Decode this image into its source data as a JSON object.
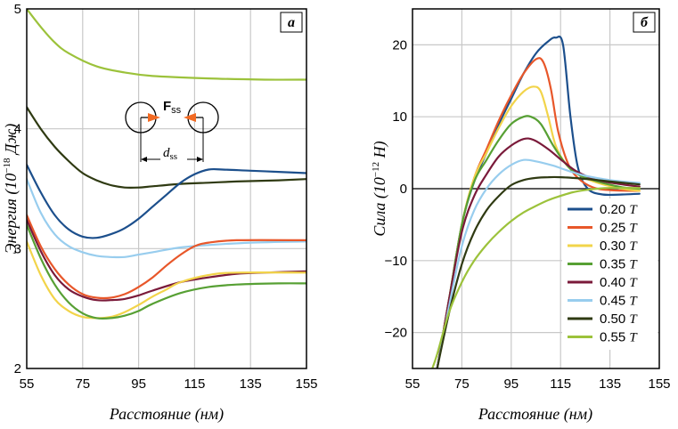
{
  "chart_data": [
    {
      "type": "line",
      "panel_label": "a",
      "xlabel": "Расстояние (нм)",
      "ylabel_main": "Энергия (10",
      "ylabel_exp": "−18",
      "ylabel_unit": " Дж)",
      "xlim": [
        55,
        155
      ],
      "ylim": [
        2,
        5
      ],
      "xticks": [
        55,
        75,
        95,
        115,
        135,
        155
      ],
      "yticks": [
        2,
        3,
        4,
        5
      ],
      "grid": true,
      "inset": {
        "force_label": "F",
        "force_sub": "ss",
        "dist_label": "d",
        "dist_sub": "ss"
      },
      "series": [
        {
          "color": "#9cc23b",
          "points": [
            [
              55,
              5.0
            ],
            [
              60,
              4.85
            ],
            [
              65,
              4.72
            ],
            [
              70,
              4.63
            ],
            [
              80,
              4.52
            ],
            [
              90,
              4.47
            ],
            [
              100,
              4.44
            ],
            [
              120,
              4.42
            ],
            [
              140,
              4.41
            ],
            [
              155,
              4.41
            ]
          ]
        },
        {
          "color": "#2f3a12",
          "points": [
            [
              55,
              4.18
            ],
            [
              60,
              4.0
            ],
            [
              65,
              3.85
            ],
            [
              70,
              3.73
            ],
            [
              75,
              3.63
            ],
            [
              80,
              3.57
            ],
            [
              85,
              3.53
            ],
            [
              90,
              3.51
            ],
            [
              95,
              3.51
            ],
            [
              100,
              3.52
            ],
            [
              110,
              3.54
            ],
            [
              120,
              3.55
            ],
            [
              130,
              3.56
            ],
            [
              145,
              3.57
            ],
            [
              155,
              3.58
            ]
          ]
        },
        {
          "color": "#1c4f8c",
          "points": [
            [
              55,
              3.7
            ],
            [
              60,
              3.47
            ],
            [
              65,
              3.28
            ],
            [
              70,
              3.16
            ],
            [
              75,
              3.1
            ],
            [
              80,
              3.09
            ],
            [
              85,
              3.12
            ],
            [
              90,
              3.17
            ],
            [
              95,
              3.25
            ],
            [
              100,
              3.35
            ],
            [
              105,
              3.45
            ],
            [
              110,
              3.55
            ],
            [
              115,
              3.62
            ],
            [
              120,
              3.66
            ],
            [
              125,
              3.66
            ],
            [
              135,
              3.65
            ],
            [
              145,
              3.64
            ],
            [
              155,
              3.63
            ]
          ]
        },
        {
          "color": "#98cdee",
          "points": [
            [
              55,
              3.58
            ],
            [
              60,
              3.3
            ],
            [
              65,
              3.12
            ],
            [
              70,
              3.02
            ],
            [
              75,
              2.97
            ],
            [
              80,
              2.94
            ],
            [
              85,
              2.93
            ],
            [
              90,
              2.93
            ],
            [
              95,
              2.95
            ],
            [
              100,
              2.97
            ],
            [
              110,
              3.01
            ],
            [
              120,
              3.03
            ],
            [
              135,
              3.05
            ],
            [
              155,
              3.06
            ]
          ]
        },
        {
          "color": "#e8572a",
          "points": [
            [
              55,
              3.28
            ],
            [
              60,
              3.02
            ],
            [
              65,
              2.83
            ],
            [
              70,
              2.7
            ],
            [
              75,
              2.62
            ],
            [
              80,
              2.59
            ],
            [
              85,
              2.59
            ],
            [
              90,
              2.62
            ],
            [
              95,
              2.68
            ],
            [
              100,
              2.76
            ],
            [
              105,
              2.86
            ],
            [
              110,
              2.95
            ],
            [
              115,
              3.02
            ],
            [
              120,
              3.05
            ],
            [
              130,
              3.07
            ],
            [
              155,
              3.07
            ]
          ]
        },
        {
          "color": "#7a1a3a",
          "points": [
            [
              55,
              3.24
            ],
            [
              60,
              2.98
            ],
            [
              65,
              2.78
            ],
            [
              70,
              2.66
            ],
            [
              75,
              2.6
            ],
            [
              80,
              2.57
            ],
            [
              85,
              2.57
            ],
            [
              90,
              2.58
            ],
            [
              95,
              2.61
            ],
            [
              100,
              2.65
            ],
            [
              110,
              2.72
            ],
            [
              120,
              2.76
            ],
            [
              130,
              2.79
            ],
            [
              140,
              2.8
            ],
            [
              155,
              2.81
            ]
          ]
        },
        {
          "color": "#f2d44a",
          "points": [
            [
              55,
              3.06
            ],
            [
              60,
              2.78
            ],
            [
              65,
              2.58
            ],
            [
              70,
              2.48
            ],
            [
              75,
              2.43
            ],
            [
              80,
              2.42
            ],
            [
              85,
              2.43
            ],
            [
              90,
              2.47
            ],
            [
              95,
              2.53
            ],
            [
              100,
              2.6
            ],
            [
              105,
              2.66
            ],
            [
              110,
              2.72
            ],
            [
              120,
              2.78
            ],
            [
              130,
              2.8
            ],
            [
              155,
              2.8
            ]
          ]
        },
        {
          "color": "#57a034",
          "points": [
            [
              55,
              3.2
            ],
            [
              60,
              2.92
            ],
            [
              65,
              2.7
            ],
            [
              70,
              2.55
            ],
            [
              75,
              2.46
            ],
            [
              80,
              2.42
            ],
            [
              85,
              2.42
            ],
            [
              90,
              2.44
            ],
            [
              95,
              2.48
            ],
            [
              100,
              2.54
            ],
            [
              110,
              2.63
            ],
            [
              120,
              2.68
            ],
            [
              130,
              2.7
            ],
            [
              145,
              2.71
            ],
            [
              155,
              2.71
            ]
          ]
        }
      ]
    },
    {
      "type": "line",
      "panel_label": "б",
      "xlabel": "Расстояние (нм)",
      "ylabel_main": "Сила (10",
      "ylabel_exp": "−12",
      "ylabel_unit": " Н)",
      "xlim": [
        55,
        155
      ],
      "ylim": [
        -25,
        25
      ],
      "xticks": [
        55,
        75,
        95,
        115,
        135,
        155
      ],
      "yticks": [
        -20,
        -10,
        0,
        10,
        20
      ],
      "grid": true,
      "legend_position": "lower-right",
      "series": [
        {
          "name": "0.20",
          "unit": "T",
          "color": "#1c4f8c",
          "points": [
            [
              65,
              -25
            ],
            [
              70,
              -15
            ],
            [
              75,
              -5
            ],
            [
              80,
              1
            ],
            [
              85,
              5
            ],
            [
              90,
              9
            ],
            [
              95,
              12.5
            ],
            [
              100,
              16
            ],
            [
              105,
              18.8
            ],
            [
              110,
              20.5
            ],
            [
              113,
              21
            ],
            [
              116,
              20
            ],
            [
              119,
              10
            ],
            [
              122,
              3
            ],
            [
              126,
              0
            ],
            [
              132,
              -0.8
            ],
            [
              140,
              -0.8
            ],
            [
              147,
              -0.7
            ]
          ]
        },
        {
          "name": "0.25",
          "unit": "T",
          "color": "#e8572a",
          "points": [
            [
              65,
              -25
            ],
            [
              70,
              -15
            ],
            [
              75,
              -5
            ],
            [
              80,
              1.5
            ],
            [
              85,
              5.5
            ],
            [
              90,
              9.5
            ],
            [
              95,
              13
            ],
            [
              100,
              16
            ],
            [
              105,
              18
            ],
            [
              108,
              17.6
            ],
            [
              111,
              14
            ],
            [
              114,
              8
            ],
            [
              118,
              3.5
            ],
            [
              122,
              1.5
            ],
            [
              128,
              0.2
            ],
            [
              135,
              -0.2
            ],
            [
              147,
              -0.3
            ]
          ]
        },
        {
          "name": "0.30",
          "unit": "T",
          "color": "#f2d44a",
          "points": [
            [
              65,
              -25
            ],
            [
              70,
              -15
            ],
            [
              75,
              -5
            ],
            [
              80,
              1.5
            ],
            [
              85,
              5
            ],
            [
              90,
              8.5
            ],
            [
              95,
              11.5
            ],
            [
              100,
              13.5
            ],
            [
              104,
              14.2
            ],
            [
              107,
              13.5
            ],
            [
              110,
              10
            ],
            [
              113,
              6
            ],
            [
              117,
              3.5
            ],
            [
              122,
              2
            ],
            [
              130,
              0.8
            ],
            [
              140,
              0
            ],
            [
              147,
              -0.3
            ]
          ]
        },
        {
          "name": "0.35",
          "unit": "T",
          "color": "#57a034",
          "points": [
            [
              65,
              -25
            ],
            [
              70,
              -15
            ],
            [
              75,
              -5
            ],
            [
              80,
              1
            ],
            [
              85,
              4
            ],
            [
              90,
              6.8
            ],
            [
              95,
              9
            ],
            [
              100,
              10
            ],
            [
              103,
              10
            ],
            [
              107,
              9
            ],
            [
              112,
              6
            ],
            [
              117,
              3.5
            ],
            [
              122,
              2
            ],
            [
              130,
              1
            ],
            [
              140,
              0.2
            ],
            [
              147,
              0
            ]
          ]
        },
        {
          "name": "0.40",
          "unit": "T",
          "color": "#7a1a3a",
          "points": [
            [
              65,
              -25
            ],
            [
              70,
              -15
            ],
            [
              75,
              -6
            ],
            [
              80,
              -1
            ],
            [
              85,
              2
            ],
            [
              90,
              4.5
            ],
            [
              95,
              6
            ],
            [
              100,
              6.9
            ],
            [
              104,
              6.8
            ],
            [
              110,
              5.5
            ],
            [
              116,
              3.8
            ],
            [
              122,
              2.3
            ],
            [
              130,
              1.2
            ],
            [
              140,
              0.6
            ],
            [
              147,
              0.3
            ]
          ]
        },
        {
          "name": "0.45",
          "unit": "T",
          "color": "#98cdee",
          "points": [
            [
              65,
              -25
            ],
            [
              70,
              -16
            ],
            [
              75,
              -8
            ],
            [
              80,
              -3
            ],
            [
              85,
              0
            ],
            [
              90,
              2
            ],
            [
              95,
              3.3
            ],
            [
              100,
              4
            ],
            [
              105,
              3.8
            ],
            [
              112,
              3.2
            ],
            [
              118,
              2.5
            ],
            [
              125,
              1.8
            ],
            [
              135,
              1.2
            ],
            [
              147,
              0.8
            ]
          ]
        },
        {
          "name": "0.50",
          "unit": "T",
          "color": "#2f3a12",
          "points": [
            [
              65,
              -25
            ],
            [
              70,
              -17
            ],
            [
              75,
              -10.5
            ],
            [
              80,
              -6
            ],
            [
              85,
              -3
            ],
            [
              90,
              -1
            ],
            [
              95,
              0.5
            ],
            [
              100,
              1.2
            ],
            [
              105,
              1.5
            ],
            [
              110,
              1.6
            ],
            [
              115,
              1.6
            ],
            [
              120,
              1.5
            ],
            [
              127,
              1.3
            ],
            [
              135,
              1
            ],
            [
              147,
              0.6
            ]
          ]
        },
        {
          "name": "0.55",
          "unit": "T",
          "color": "#9cc23b",
          "points": [
            [
              63,
              -25
            ],
            [
              65,
              -23
            ],
            [
              70,
              -17
            ],
            [
              75,
              -13
            ],
            [
              80,
              -10
            ],
            [
              85,
              -7.8
            ],
            [
              90,
              -6
            ],
            [
              95,
              -4.5
            ],
            [
              100,
              -3.3
            ],
            [
              105,
              -2.4
            ],
            [
              110,
              -1.6
            ],
            [
              115,
              -1
            ],
            [
              120,
              -0.5
            ],
            [
              125,
              -0.2
            ],
            [
              130,
              0
            ],
            [
              135,
              0.1
            ],
            [
              147,
              0.1
            ]
          ]
        }
      ]
    }
  ]
}
